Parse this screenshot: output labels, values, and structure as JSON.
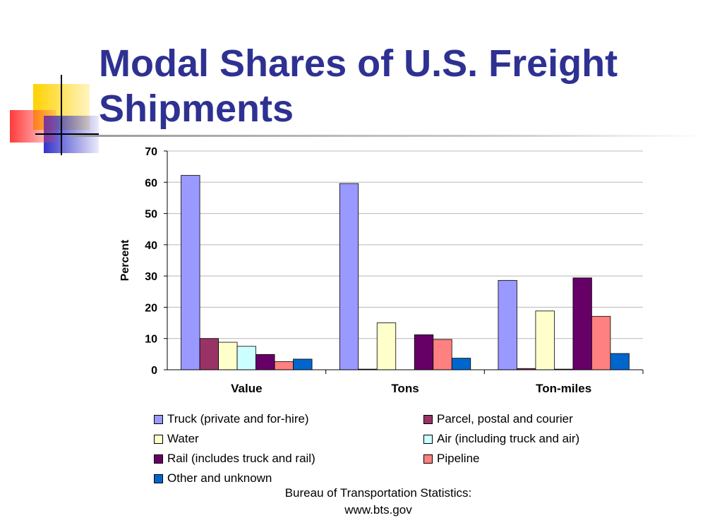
{
  "slide": {
    "title_line1": "Modal Shares of U.S. Freight",
    "title_line2": "Shipments",
    "source_line1": "Bureau of Transportation Statistics:",
    "source_line2": "www.bts.gov"
  },
  "colors": {
    "title": "#2e3192",
    "decor_yellow": "#ffd200",
    "decor_red": "#ff5050",
    "decor_blue": "#3333cc"
  },
  "chart_data": {
    "type": "bar",
    "title": "",
    "xlabel": "",
    "ylabel": "Percent",
    "ylim": [
      0,
      70
    ],
    "yticks": [
      0,
      10,
      20,
      30,
      40,
      50,
      60,
      70
    ],
    "grid": true,
    "legend_position": "bottom",
    "categories": [
      "Value",
      "Tons",
      "Ton-miles"
    ],
    "series": [
      {
        "name": "Truck (private and for-hire)",
        "color": "#9999ff",
        "values": [
          62.2,
          59.6,
          28.6
        ]
      },
      {
        "name": "Parcel, postal and courier",
        "color": "#993366",
        "values": [
          10.0,
          0.2,
          0.4
        ]
      },
      {
        "name": "Water",
        "color": "#ffffcc",
        "values": [
          8.8,
          15.0,
          18.8
        ]
      },
      {
        "name": "Air (including truck and air)",
        "color": "#ccffff",
        "values": [
          7.5,
          0.0,
          0.2
        ]
      },
      {
        "name": "Rail (includes truck and rail)",
        "color": "#660066",
        "values": [
          4.9,
          11.2,
          29.4
        ]
      },
      {
        "name": "Pipeline",
        "color": "#ff8080",
        "values": [
          2.6,
          9.7,
          17.1
        ]
      },
      {
        "name": "Other and unknown",
        "color": "#0066cc",
        "values": [
          3.4,
          3.7,
          5.2
        ]
      }
    ]
  }
}
